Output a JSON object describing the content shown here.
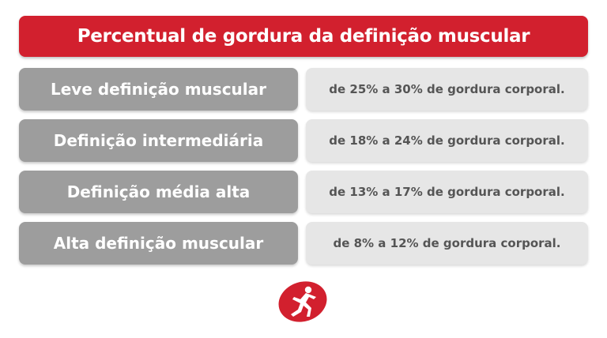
{
  "title": "Percentual de gordura da definição muscular",
  "rows": [
    {
      "label": "Leve definição muscular",
      "value": "de 25% a 30% de gordura corporal."
    },
    {
      "label": "Definição intermediária",
      "value": "de 18% a 24% de gordura corporal."
    },
    {
      "label": "Definição média alta",
      "value": "de 13% a 17% de gordura corporal."
    },
    {
      "label": "Alta definição muscular",
      "value": "de 8% a 12% de gordura corporal."
    }
  ],
  "logo": {
    "icon": "runner-emblem-icon"
  },
  "colors": {
    "title_bg": "#d2202e",
    "label_bg": "#9d9d9d",
    "value_bg": "#e6e6e6",
    "value_text": "#555555",
    "logo_red": "#d2202e"
  }
}
